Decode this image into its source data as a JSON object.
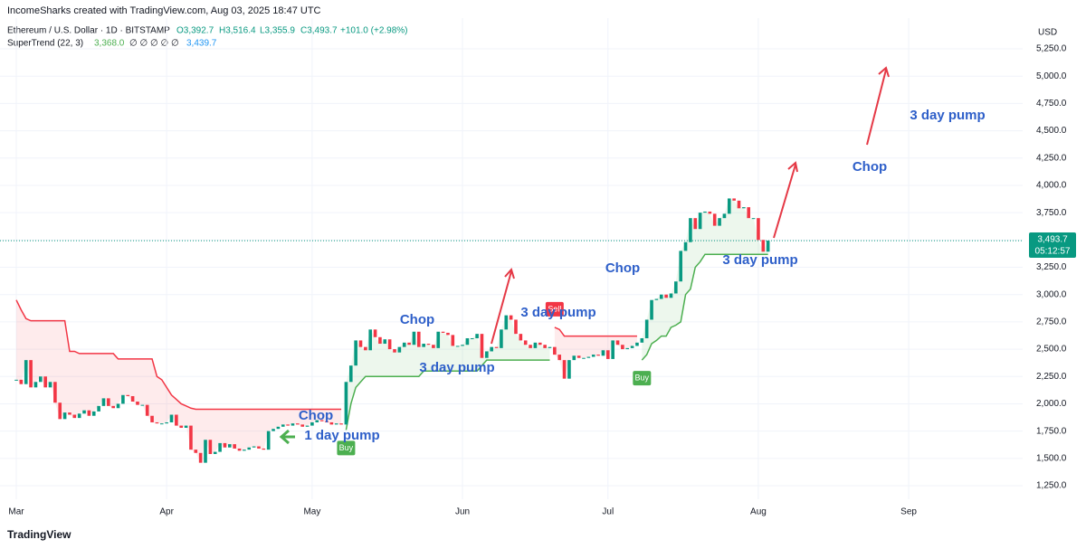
{
  "header": {
    "credit": "IncomeSharks created with TradingView.com, Aug 03, 2025 18:47 UTC",
    "symbol": "Ethereum / U.S. Dollar · 1D · BITSTAMP",
    "open": "O3,392.7",
    "high": "H3,516.4",
    "low": "L3,355.9",
    "close": "C3,493.7",
    "change": "+101.0 (+2.98%)",
    "indicator": "SuperTrend (22, 3)",
    "indicator_value": "3,368.0",
    "indicator_blanks": "∅ ∅ ∅ ∅ ∅",
    "indicator_value2": "3,439.7",
    "currency": "USD",
    "price_label": "3,493.7",
    "countdown": "05:12:57",
    "logo": "TradingView"
  },
  "chart_data": {
    "type": "candlestick",
    "up_color": "#089981",
    "down_color": "#f23645",
    "grid": true,
    "xlim": [
      -3.36,
      207.5
    ],
    "xticks": [
      {
        "value": 0,
        "label": "Mar"
      },
      {
        "value": 31,
        "label": "Apr"
      },
      {
        "value": 61,
        "label": "May"
      },
      {
        "value": 92,
        "label": "Jun"
      },
      {
        "value": 122,
        "label": "Jul"
      },
      {
        "value": 153,
        "label": "Aug"
      },
      {
        "value": 184,
        "label": "Sep"
      }
    ],
    "ylim": [
      1250,
      5250
    ],
    "yticks": [
      {
        "value": 1250,
        "label": "1,250.0"
      },
      {
        "value": 1500,
        "label": "1,500.0"
      },
      {
        "value": 1750,
        "label": "1,750.0"
      },
      {
        "value": 2000,
        "label": "2,000.0"
      },
      {
        "value": 2250,
        "label": "2,250.0"
      },
      {
        "value": 2500,
        "label": "2,500.0"
      },
      {
        "value": 2750,
        "label": "2,750.0"
      },
      {
        "value": 3000,
        "label": "3,000.0"
      },
      {
        "value": 3250,
        "label": "3,250.0"
      },
      {
        "value": 3500,
        "label": "3,500.0"
      },
      {
        "value": 3750,
        "label": "3,750.0"
      },
      {
        "value": 4000,
        "label": "4,000.0"
      },
      {
        "value": 4250,
        "label": "4,250.0"
      },
      {
        "value": 4500,
        "label": "4,500.0"
      },
      {
        "value": 4750,
        "label": "4,750.0"
      },
      {
        "value": 5000,
        "label": "5,000.0"
      },
      {
        "value": 5250,
        "label": "5,250.0"
      }
    ],
    "close": [
      2220,
      2180,
      2400,
      2150,
      2200,
      2250,
      2150,
      2200,
      2010,
      1860,
      1920,
      1900,
      1870,
      1910,
      1940,
      1890,
      1930,
      1980,
      2050,
      1980,
      1960,
      2000,
      2080,
      2070,
      2020,
      1990,
      1990,
      1890,
      1830,
      1820,
      1820,
      1830,
      1900,
      1800,
      1780,
      1800,
      1580,
      1550,
      1460,
      1670,
      1540,
      1560,
      1640,
      1600,
      1630,
      1590,
      1570,
      1580,
      1600,
      1610,
      1590,
      1580,
      1750,
      1770,
      1790,
      1810,
      1800,
      1820,
      1810,
      1790,
      1800,
      1830,
      1850,
      1840,
      1830,
      1810,
      1820,
      1810,
      2200,
      2350,
      2580,
      2520,
      2490,
      2680,
      2610,
      2550,
      2590,
      2500,
      2470,
      2520,
      2560,
      2540,
      2660,
      2520,
      2550,
      2540,
      2510,
      2660,
      2650,
      2630,
      2530,
      2530,
      2540,
      2600,
      2600,
      2640,
      2420,
      2480,
      2520,
      2510,
      2680,
      2810,
      2770,
      2640,
      2580,
      2540,
      2510,
      2560,
      2540,
      2510,
      2520,
      2450,
      2400,
      2230,
      2400,
      2440,
      2420,
      2420,
      2430,
      2450,
      2440,
      2490,
      2410,
      2580,
      2540,
      2500,
      2510,
      2530,
      2560,
      2600,
      2770,
      2950,
      2960,
      3000,
      2970,
      3010,
      3120,
      3400,
      3480,
      3700,
      3600,
      3750,
      3760,
      3740,
      3630,
      3700,
      3740,
      3880,
      3860,
      3790,
      3800,
      3700,
      3700,
      3500,
      3392.7,
      3493.7
    ],
    "supertrend": [
      2950,
      2860,
      2780,
      2760,
      2760,
      2760,
      2760,
      2760,
      2760,
      2760,
      2760,
      2480,
      2480,
      2460,
      2460,
      2460,
      2460,
      2460,
      2460,
      2460,
      2460,
      2410,
      2410,
      2410,
      2410,
      2410,
      2410,
      2410,
      2410,
      2250,
      2220,
      2150,
      2080,
      2040,
      2000,
      1980,
      1960,
      1950,
      1950,
      1950,
      1950,
      1950,
      1950,
      1950,
      1950,
      1950,
      1950,
      1950,
      1950,
      1950,
      1950,
      1950,
      1950,
      1950,
      1950,
      1950,
      1950,
      1950,
      1950,
      1950,
      1950,
      1950,
      1950,
      1950,
      1950,
      1950,
      1950,
      1950,
      1760,
      2000,
      2150,
      2200,
      2250,
      2250,
      2250,
      2250,
      2250,
      2250,
      2250,
      2250,
      2250,
      2250,
      2250,
      2250,
      2300,
      2300,
      2300,
      2300,
      2300,
      2300,
      2300,
      2300,
      2300,
      2300,
      2300,
      2300,
      2350,
      2400,
      2400,
      2400,
      2400,
      2400,
      2400,
      2400,
      2400,
      2400,
      2400,
      2400,
      2400,
      2400,
      2400,
      2700,
      2680,
      2620,
      2620,
      2620,
      2620,
      2620,
      2620,
      2620,
      2620,
      2620,
      2620,
      2620,
      2620,
      2620,
      2620,
      2620,
      2620,
      2400,
      2450,
      2550,
      2580,
      2620,
      2620,
      2700,
      2720,
      2750,
      3000,
      3050,
      3250,
      3300,
      3368,
      3368,
      3368,
      3368,
      3368,
      3368,
      3368,
      3368,
      3368,
      3368,
      3368,
      3368,
      3368,
      3368
    ],
    "supertrend_up_color": "#4caf50",
    "supertrend_down_color": "#f23645",
    "signals": [
      {
        "label": "Buy",
        "x": 68
      },
      {
        "label": "Sell",
        "x": 111
      },
      {
        "label": "Buy",
        "x": 129
      }
    ],
    "annotations": [
      "Chop",
      "Chop",
      "Chop",
      "Chop",
      "3 day pump",
      "3 day pump",
      "3 day pump",
      "3 day pump",
      "1 day pump"
    ]
  }
}
